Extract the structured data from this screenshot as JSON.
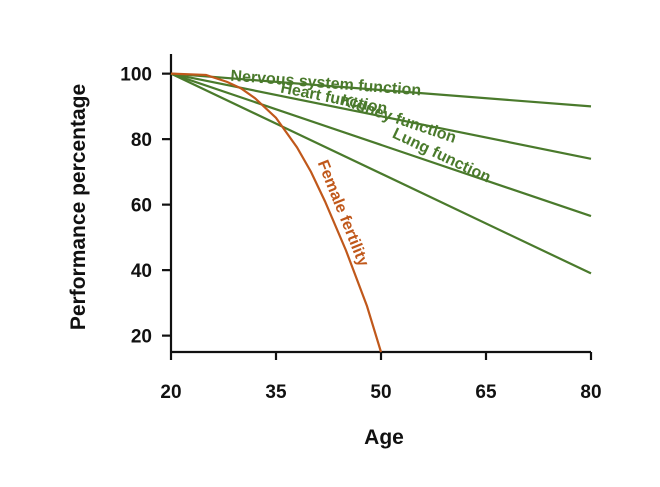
{
  "chart_data": {
    "type": "line",
    "xlabel": "Age",
    "ylabel": "Performance percentage",
    "xlim": [
      20,
      80
    ],
    "ylim": [
      15,
      106
    ],
    "x_ticks": [
      20,
      35,
      50,
      65,
      80
    ],
    "y_ticks": [
      20,
      40,
      60,
      80,
      100
    ],
    "grid": false,
    "series": [
      {
        "name": "Nervous system function",
        "color": "#4a7a2c",
        "x": [
          20,
          80
        ],
        "y": [
          100,
          90
        ]
      },
      {
        "name": "Heart function",
        "color": "#4a7a2c",
        "x": [
          20,
          80
        ],
        "y": [
          100,
          74
        ]
      },
      {
        "name": "Kidney function",
        "color": "#4a7a2c",
        "x": [
          20,
          80
        ],
        "y": [
          100,
          56.5
        ]
      },
      {
        "name": "Lung function",
        "color": "#4a7a2c",
        "x": [
          20,
          80
        ],
        "y": [
          100,
          39
        ]
      },
      {
        "name": "Female fertility",
        "color": "#c0581b",
        "x": [
          20,
          25,
          28,
          30,
          32,
          35,
          38,
          40,
          42,
          45,
          48,
          50
        ],
        "y": [
          100,
          99.6,
          97.5,
          95.5,
          92.5,
          86.5,
          77.5,
          70,
          61,
          46,
          29,
          15
        ]
      }
    ]
  }
}
